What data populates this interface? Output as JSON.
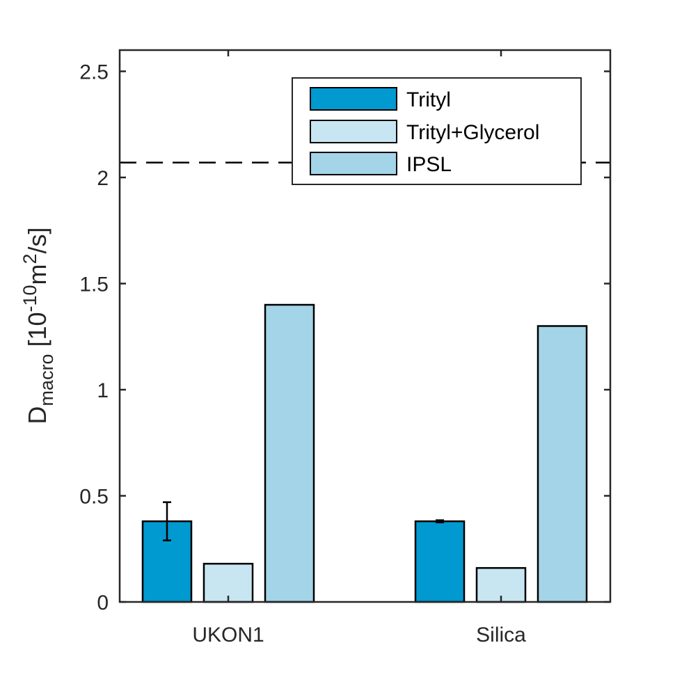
{
  "chart_data": {
    "type": "bar",
    "categories": [
      "UKON1",
      "Silica"
    ],
    "series": [
      {
        "name": "Trityl",
        "values": [
          0.38,
          0.38
        ],
        "error": [
          0.09,
          0.005
        ],
        "color": "#0099d0"
      },
      {
        "name": "Trityl+Glycerol",
        "values": [
          0.18,
          0.16
        ],
        "error": [
          null,
          null
        ],
        "color": "#c8e6f2"
      },
      {
        "name": "IPSL",
        "values": [
          1.4,
          1.3
        ],
        "error": [
          null,
          null
        ],
        "color": "#a3d4e8"
      }
    ],
    "reference_line": {
      "value": 2.07,
      "style": "dashed"
    },
    "ylabel": {
      "main": "D",
      "sub": "macro",
      "bracket_open": " [10",
      "exp": "-10",
      "unit": "m",
      "unit_exp": "2",
      "bracket_close": "/s]"
    },
    "ylim": [
      0,
      2.6
    ],
    "yticks": [
      "0",
      "0.5",
      "1",
      "1.5",
      "2",
      "2.5"
    ],
    "ytick_values": [
      0,
      0.5,
      1,
      1.5,
      2,
      2.5
    ],
    "legend": {
      "placement": "top-right"
    },
    "grid": false
  }
}
